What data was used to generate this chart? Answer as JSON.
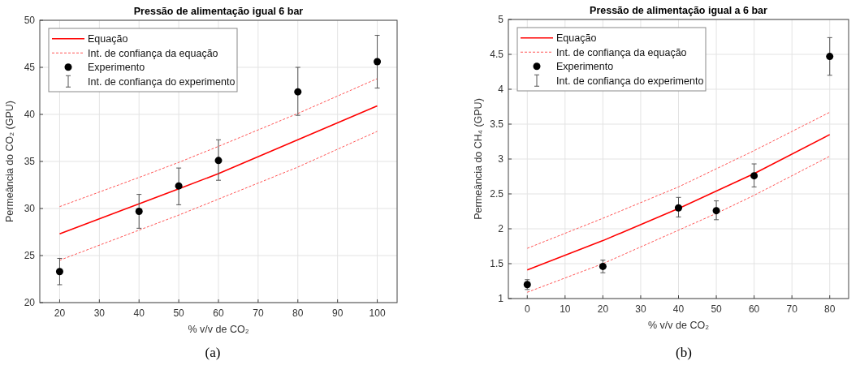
{
  "chart_data": [
    {
      "type": "line",
      "title": "Pressão de alimentação igual 6 bar",
      "xlabel": "% v/v de CO₂",
      "ylabel": "Permeância do CO₂ (GPU)",
      "annotations": [
        "(a)"
      ],
      "xlim": [
        15,
        105
      ],
      "xticks": [
        20,
        30,
        40,
        50,
        60,
        70,
        80,
        90,
        100
      ],
      "ylim": [
        20,
        50
      ],
      "yticks": [
        20,
        25,
        30,
        35,
        40,
        45,
        50
      ],
      "grid": true,
      "legend": "top left",
      "x": [
        20,
        40,
        50,
        60,
        80,
        100
      ],
      "series": [
        {
          "name": "Equação",
          "color": "#ff0000",
          "line_style": "solid",
          "values": [
            27.3,
            30.5,
            32.1,
            33.7,
            37.3,
            40.9
          ]
        },
        {
          "name": "Int. de confiança da equação",
          "color": "#ff5555",
          "line_style": "dashed",
          "values": [
            30.2,
            33.3,
            34.9,
            36.6,
            40.1,
            43.8
          ]
        },
        {
          "color": "#ff5555",
          "line_style": "dashed",
          "values": [
            24.5,
            27.7,
            29.3,
            31.0,
            34.4,
            38.2
          ]
        },
        {
          "name": "Experimento",
          "type": "scatter",
          "color": "#000000",
          "marker": "circle",
          "values": [
            23.3,
            29.7,
            32.4,
            35.1,
            42.4,
            45.6
          ],
          "errors": [
            [
              21.9,
              24.7
            ],
            [
              27.9,
              31.5
            ],
            [
              30.4,
              34.3
            ],
            [
              33.0,
              37.3
            ],
            [
              39.9,
              45.0
            ],
            [
              42.8,
              48.4
            ]
          ]
        },
        {
          "name": "Int. de confiança do experimento",
          "type": "scatter",
          "color": "#555555",
          "marker": "none",
          "values": [
            null,
            null,
            null,
            null,
            null,
            null
          ]
        }
      ]
    },
    {
      "type": "line",
      "title": "Pressão de alimentação igual a 6 bar",
      "xlabel": "% v/v de CO₂",
      "ylabel": "Permeância do CH₄ (GPU)",
      "annotations": [
        "(b)"
      ],
      "xlim": [
        -5,
        85
      ],
      "xticks": [
        0,
        10,
        20,
        30,
        40,
        50,
        60,
        70,
        80
      ],
      "ylim": [
        1,
        5
      ],
      "yticks": [
        1,
        1.5,
        2,
        2.5,
        3,
        3.5,
        4,
        4.5,
        5
      ],
      "grid": true,
      "legend": "top left",
      "x": [
        0,
        20,
        40,
        50,
        60,
        80
      ],
      "series": [
        {
          "name": "Equação",
          "color": "#ff0000",
          "line_style": "solid",
          "values": [
            1.41,
            1.83,
            2.29,
            2.54,
            2.79,
            3.35
          ]
        },
        {
          "name": "Int. de confiança da equação",
          "color": "#ff5555",
          "line_style": "dashed",
          "values": [
            1.72,
            2.15,
            2.6,
            2.86,
            3.12,
            3.67
          ]
        },
        {
          "color": "#ff5555",
          "line_style": "dashed",
          "values": [
            1.09,
            1.5,
            1.98,
            2.22,
            2.48,
            3.04
          ]
        },
        {
          "name": "Experimento",
          "type": "scatter",
          "color": "#000000",
          "marker": "circle",
          "values": [
            1.2,
            1.46,
            2.3,
            2.26,
            2.76,
            4.47
          ],
          "errors": [
            [
              1.13,
              1.27
            ],
            [
              1.37,
              1.55
            ],
            [
              2.17,
              2.45
            ],
            [
              2.13,
              2.4
            ],
            [
              2.6,
              2.93
            ],
            [
              4.2,
              4.74
            ]
          ]
        },
        {
          "name": "Int. de confiança do experimento",
          "type": "scatter",
          "color": "#555555",
          "marker": "none",
          "values": [
            null,
            null,
            null,
            null,
            null,
            null
          ]
        }
      ]
    }
  ]
}
